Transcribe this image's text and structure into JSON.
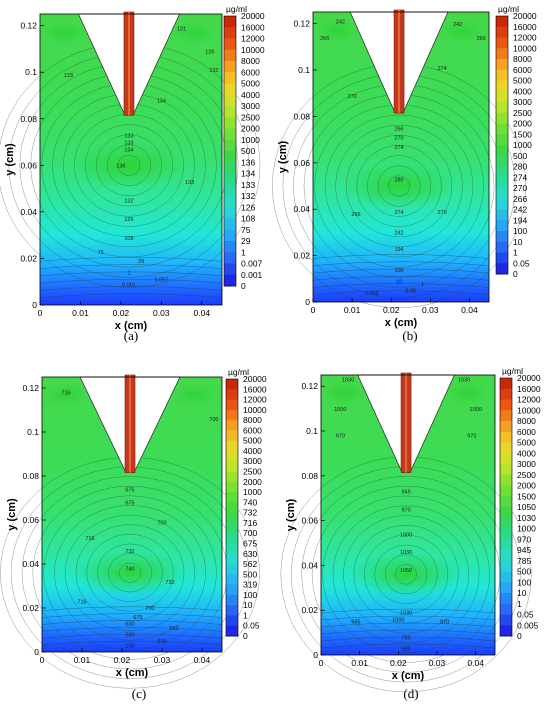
{
  "figure": {
    "captions": [
      "(a)",
      "(b)",
      "(c)",
      "(d)"
    ]
  },
  "chart_data": [
    {
      "type": "heatmap",
      "caption": "(a)",
      "xlabel": "x (cm)",
      "ylabel": "y (cm)",
      "xlim": [
        0,
        0.045
      ],
      "ylim": [
        0,
        0.125
      ],
      "xticks": [
        "0",
        "0.01",
        "0.02",
        "0.03",
        "0.04"
      ],
      "yticks": [
        "0",
        "0.02",
        "0.04",
        "0.06",
        "0.08",
        "0.1",
        "0.12"
      ],
      "colorbar_unit": "µg/ml",
      "colorbar_levels": [
        "20000",
        "16000",
        "12000",
        "10000",
        "8000",
        "6000",
        "5000",
        "4000",
        "3000",
        "2500",
        "2000",
        "1000",
        "500",
        "136",
        "134",
        "133",
        "132",
        "126",
        "108",
        "75",
        "29",
        "1",
        "0.007",
        "0.001",
        "0"
      ],
      "contour_labels": [
        {
          "x": 0.035,
          "y": 0.118,
          "v": "121"
        },
        {
          "x": 0.042,
          "y": 0.108,
          "v": "126"
        },
        {
          "x": 0.043,
          "y": 0.1,
          "v": "132"
        },
        {
          "x": 0.007,
          "y": 0.098,
          "v": "133"
        },
        {
          "x": 0.03,
          "y": 0.087,
          "v": "134"
        },
        {
          "x": 0.022,
          "y": 0.072,
          "v": "133"
        },
        {
          "x": 0.022,
          "y": 0.069,
          "v": "133"
        },
        {
          "x": 0.022,
          "y": 0.066,
          "v": "134"
        },
        {
          "x": 0.02,
          "y": 0.059,
          "v": "136"
        },
        {
          "x": 0.037,
          "y": 0.052,
          "v": "133"
        },
        {
          "x": 0.022,
          "y": 0.044,
          "v": "132"
        },
        {
          "x": 0.022,
          "y": 0.036,
          "v": "126"
        },
        {
          "x": 0.022,
          "y": 0.028,
          "v": "108"
        },
        {
          "x": 0.015,
          "y": 0.022,
          "v": "75"
        },
        {
          "x": 0.025,
          "y": 0.018,
          "v": "29"
        },
        {
          "x": 0.022,
          "y": 0.013,
          "v": "1"
        },
        {
          "x": 0.022,
          "y": 0.008,
          "v": "0.001"
        },
        {
          "x": 0.03,
          "y": 0.01,
          "v": "0.007"
        }
      ]
    },
    {
      "type": "heatmap",
      "caption": "(b)",
      "xlabel": "x (cm)",
      "ylabel": "y (cm)",
      "xlim": [
        0,
        0.045
      ],
      "ylim": [
        0,
        0.125
      ],
      "xticks": [
        "0",
        "0.01",
        "0.02",
        "0.03",
        "0.04"
      ],
      "yticks": [
        "0",
        "0.02",
        "0.04",
        "0.06",
        "0.08",
        "0.1",
        "0.12"
      ],
      "colorbar_unit": "µg/ml",
      "colorbar_levels": [
        "20000",
        "16000",
        "12000",
        "10000",
        "8000",
        "6000",
        "5000",
        "4000",
        "3000",
        "2500",
        "2000",
        "1500",
        "1000",
        "500",
        "280",
        "274",
        "270",
        "266",
        "242",
        "194",
        "100",
        "10",
        "1",
        "0.05",
        "0"
      ],
      "contour_labels": [
        {
          "x": 0.007,
          "y": 0.12,
          "v": "242"
        },
        {
          "x": 0.037,
          "y": 0.119,
          "v": "242"
        },
        {
          "x": 0.003,
          "y": 0.113,
          "v": "266"
        },
        {
          "x": 0.043,
          "y": 0.113,
          "v": "266"
        },
        {
          "x": 0.033,
          "y": 0.1,
          "v": "274"
        },
        {
          "x": 0.01,
          "y": 0.088,
          "v": "270"
        },
        {
          "x": 0.022,
          "y": 0.074,
          "v": "266"
        },
        {
          "x": 0.022,
          "y": 0.07,
          "v": "270"
        },
        {
          "x": 0.022,
          "y": 0.066,
          "v": "274"
        },
        {
          "x": 0.022,
          "y": 0.052,
          "v": "280"
        },
        {
          "x": 0.011,
          "y": 0.037,
          "v": "266"
        },
        {
          "x": 0.022,
          "y": 0.038,
          "v": "274"
        },
        {
          "x": 0.033,
          "y": 0.038,
          "v": "270"
        },
        {
          "x": 0.022,
          "y": 0.029,
          "v": "242"
        },
        {
          "x": 0.022,
          "y": 0.022,
          "v": "194"
        },
        {
          "x": 0.022,
          "y": 0.013,
          "v": "100"
        },
        {
          "x": 0.022,
          "y": 0.008,
          "v": "10"
        },
        {
          "x": 0.028,
          "y": 0.007,
          "v": "1"
        },
        {
          "x": 0.015,
          "y": 0.003,
          "v": "0.005"
        },
        {
          "x": 0.025,
          "y": 0.004,
          "v": "0.05"
        }
      ]
    },
    {
      "type": "heatmap",
      "caption": "(c)",
      "xlabel": "x (cm)",
      "ylabel": "y (cm)",
      "xlim": [
        0,
        0.045
      ],
      "ylim": [
        0,
        0.125
      ],
      "xticks": [
        "0",
        "0.01",
        "0.02",
        "0.03",
        "0.04"
      ],
      "yticks": [
        "0",
        "0.02",
        "0.04",
        "0.06",
        "0.08",
        "0.1",
        "0.12"
      ],
      "colorbar_unit": "µg/ml",
      "colorbar_levels": [
        "20000",
        "16000",
        "12000",
        "10000",
        "8000",
        "6000",
        "5000",
        "4000",
        "3000",
        "2500",
        "2000",
        "1000",
        "740",
        "732",
        "716",
        "700",
        "675",
        "630",
        "562",
        "500",
        "319",
        "100",
        "10",
        "1",
        "0.05",
        "0"
      ],
      "contour_labels": [
        {
          "x": 0.006,
          "y": 0.117,
          "v": "716"
        },
        {
          "x": 0.043,
          "y": 0.105,
          "v": "700"
        },
        {
          "x": 0.022,
          "y": 0.073,
          "v": "675"
        },
        {
          "x": 0.022,
          "y": 0.067,
          "v": "675"
        },
        {
          "x": 0.03,
          "y": 0.058,
          "v": "700"
        },
        {
          "x": 0.012,
          "y": 0.051,
          "v": "716"
        },
        {
          "x": 0.022,
          "y": 0.045,
          "v": "732"
        },
        {
          "x": 0.022,
          "y": 0.037,
          "v": "740"
        },
        {
          "x": 0.032,
          "y": 0.031,
          "v": "732"
        },
        {
          "x": 0.01,
          "y": 0.022,
          "v": "716"
        },
        {
          "x": 0.027,
          "y": 0.019,
          "v": "700"
        },
        {
          "x": 0.024,
          "y": 0.015,
          "v": "675"
        },
        {
          "x": 0.022,
          "y": 0.012,
          "v": "630"
        },
        {
          "x": 0.033,
          "y": 0.01,
          "v": "562"
        },
        {
          "x": 0.022,
          "y": 0.007,
          "v": "500"
        },
        {
          "x": 0.03,
          "y": 0.004,
          "v": "319"
        },
        {
          "x": 0.022,
          "y": 0.002,
          "v": "100"
        }
      ]
    },
    {
      "type": "heatmap",
      "caption": "(d)",
      "xlabel": "x (cm)",
      "ylabel": "y (cm)",
      "xlim": [
        0,
        0.045
      ],
      "ylim": [
        0,
        0.125
      ],
      "xticks": [
        "0",
        "0.01",
        "0.02",
        "0.03",
        "0.04"
      ],
      "yticks": [
        "0",
        "0.02",
        "0.04",
        "0.06",
        "0.08",
        "0.1",
        "0.12"
      ],
      "colorbar_unit": "µg/ml",
      "colorbar_levels": [
        "20000",
        "16000",
        "12000",
        "10000",
        "8000",
        "6000",
        "5000",
        "4000",
        "3000",
        "2500",
        "2000",
        "1500",
        "1050",
        "1030",
        "1000",
        "970",
        "945",
        "785",
        "500",
        "100",
        "10",
        "1",
        "0.05",
        "0.005",
        "0"
      ],
      "contour_labels": [
        {
          "x": 0.007,
          "y": 0.122,
          "v": "1030"
        },
        {
          "x": 0.037,
          "y": 0.122,
          "v": "1030"
        },
        {
          "x": 0.005,
          "y": 0.109,
          "v": "1000"
        },
        {
          "x": 0.04,
          "y": 0.109,
          "v": "1000"
        },
        {
          "x": 0.005,
          "y": 0.097,
          "v": "970"
        },
        {
          "x": 0.039,
          "y": 0.097,
          "v": "970"
        },
        {
          "x": 0.022,
          "y": 0.072,
          "v": "945"
        },
        {
          "x": 0.022,
          "y": 0.064,
          "v": "970"
        },
        {
          "x": 0.022,
          "y": 0.053,
          "v": "1000"
        },
        {
          "x": 0.022,
          "y": 0.045,
          "v": "1030"
        },
        {
          "x": 0.022,
          "y": 0.037,
          "v": "1050"
        },
        {
          "x": 0.022,
          "y": 0.018,
          "v": "1030"
        },
        {
          "x": 0.009,
          "y": 0.014,
          "v": "945"
        },
        {
          "x": 0.032,
          "y": 0.014,
          "v": "970"
        },
        {
          "x": 0.02,
          "y": 0.015,
          "v": "1000"
        },
        {
          "x": 0.022,
          "y": 0.007,
          "v": "785"
        },
        {
          "x": 0.022,
          "y": 0.002,
          "v": "500"
        }
      ]
    }
  ]
}
